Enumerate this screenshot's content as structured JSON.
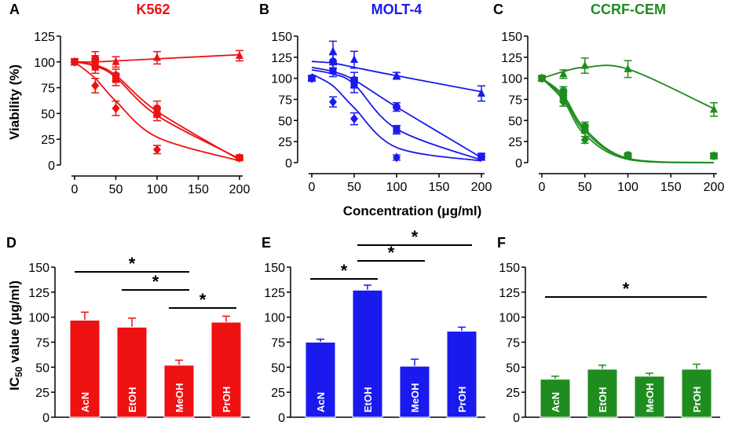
{
  "figure": {
    "shared_xlabel": "Concentration (μg/ml)",
    "ylabel_top": "Viability (%)",
    "ylabel_bottom": "IC50 value (μg/ml)",
    "ylabel_bottom_main": "IC",
    "ylabel_bottom_sub": "50",
    "ylabel_bottom_rest": " value (μg/ml)"
  },
  "chart_data": [
    {
      "panel": "A",
      "type": "line",
      "title": "K562",
      "color": "#ee1111",
      "xlabel": "Concentration (μg/ml)",
      "ylabel": "Viability (%)",
      "xlim": [
        0,
        200
      ],
      "ylim": [
        0,
        125
      ],
      "xticks": [
        0,
        50,
        100,
        150,
        200
      ],
      "yticks": [
        0,
        25,
        50,
        75,
        100,
        125
      ],
      "series": [
        {
          "name": "tri",
          "marker": "triangle",
          "x": [
            0,
            25,
            50,
            100,
            200
          ],
          "y": [
            100,
            101,
            100,
            104,
            106
          ],
          "err": [
            3,
            5,
            5,
            6,
            5
          ],
          "fit": [
            100,
            100,
            101,
            103,
            107
          ]
        },
        {
          "name": "circ",
          "marker": "circle",
          "x": [
            0,
            25,
            50,
            100,
            200
          ],
          "y": [
            100,
            103,
            87,
            55,
            7
          ],
          "err": [
            3,
            7,
            6,
            7,
            2
          ],
          "fit": [
            100,
            97,
            87,
            52,
            5
          ]
        },
        {
          "name": "sq",
          "marker": "square",
          "x": [
            0,
            25,
            50,
            100,
            200
          ],
          "y": [
            100,
            95,
            83,
            49,
            7
          ],
          "err": [
            3,
            6,
            6,
            6,
            2
          ],
          "fit": [
            100,
            96,
            85,
            48,
            6
          ]
        },
        {
          "name": "dia",
          "marker": "diamond",
          "x": [
            0,
            25,
            50,
            100,
            200
          ],
          "y": [
            100,
            77,
            55,
            15,
            7
          ],
          "err": [
            3,
            7,
            7,
            4,
            2
          ],
          "fit": [
            100,
            84,
            62,
            27,
            4
          ]
        }
      ]
    },
    {
      "panel": "B",
      "type": "line",
      "title": "MOLT-4",
      "color": "#1a1aee",
      "xlabel": "Concentration (μg/ml)",
      "ylabel": "",
      "xlim": [
        0,
        200
      ],
      "ylim": [
        0,
        150
      ],
      "xticks": [
        0,
        50,
        100,
        150,
        200
      ],
      "yticks": [
        0,
        25,
        50,
        75,
        100,
        125,
        150
      ],
      "series": [
        {
          "name": "tri",
          "marker": "triangle",
          "x": [
            0,
            25,
            50,
            100,
            200
          ],
          "y": [
            100,
            132,
            122,
            103,
            82
          ],
          "err": [
            3,
            12,
            10,
            4,
            9
          ],
          "fit": [
            120,
            118,
            113,
            103,
            84
          ]
        },
        {
          "name": "circ",
          "marker": "circle",
          "x": [
            0,
            25,
            50,
            100,
            200
          ],
          "y": [
            100,
            120,
            98,
            66,
            7
          ],
          "err": [
            3,
            8,
            9,
            5,
            4
          ],
          "fit": [
            113,
            108,
            98,
            66,
            6
          ]
        },
        {
          "name": "sq",
          "marker": "square",
          "x": [
            0,
            25,
            50,
            100,
            200
          ],
          "y": [
            100,
            109,
            92,
            39,
            7
          ],
          "err": [
            3,
            7,
            9,
            5,
            4
          ],
          "fit": [
            110,
            105,
            93,
            40,
            3
          ]
        },
        {
          "name": "dia",
          "marker": "diamond",
          "x": [
            0,
            25,
            50,
            100,
            200
          ],
          "y": [
            100,
            72,
            52,
            6,
            7
          ],
          "err": [
            3,
            6,
            7,
            3,
            4
          ],
          "fit": [
            105,
            91,
            65,
            18,
            2
          ]
        }
      ]
    },
    {
      "panel": "C",
      "type": "line",
      "title": "CCRF-CEM",
      "color": "#1f8c1f",
      "xlabel": "Concentration (μg/ml)",
      "ylabel": "",
      "xlim": [
        0,
        200
      ],
      "ylim": [
        0,
        150
      ],
      "xticks": [
        0,
        50,
        100,
        150,
        200
      ],
      "yticks": [
        0,
        25,
        50,
        75,
        100,
        125,
        150
      ],
      "series": [
        {
          "name": "tri",
          "marker": "triangle",
          "x": [
            0,
            25,
            50,
            100,
            200
          ],
          "y": [
            100,
            105,
            115,
            111,
            63
          ],
          "err": [
            3,
            5,
            9,
            10,
            8
          ],
          "fit": [
            100,
            108,
            113,
            111,
            64
          ]
        },
        {
          "name": "circ",
          "marker": "circle",
          "x": [
            0,
            25,
            50,
            100,
            200
          ],
          "y": [
            100,
            85,
            43,
            9,
            8
          ],
          "err": [
            3,
            5,
            5,
            2,
            3
          ],
          "fit": [
            100,
            80,
            40,
            5,
            0
          ]
        },
        {
          "name": "sq",
          "marker": "square",
          "x": [
            0,
            25,
            50,
            100,
            200
          ],
          "y": [
            100,
            78,
            40,
            8,
            8
          ],
          "err": [
            3,
            5,
            5,
            2,
            3
          ],
          "fit": [
            100,
            77,
            37,
            5,
            0
          ]
        },
        {
          "name": "dia",
          "marker": "diamond",
          "x": [
            0,
            25,
            50,
            100,
            200
          ],
          "y": [
            100,
            72,
            27,
            8,
            8
          ],
          "err": [
            3,
            5,
            4,
            2,
            3
          ],
          "fit": [
            100,
            74,
            33,
            4,
            0
          ]
        }
      ]
    },
    {
      "panel": "D",
      "type": "bar",
      "color": "#ee1111",
      "ylabel": "IC50 value (μg/ml)",
      "ylim": [
        0,
        150
      ],
      "yticks": [
        0,
        25,
        50,
        75,
        100,
        125,
        150
      ],
      "categories": [
        "AcN",
        "EtOH",
        "MeOH",
        "PrOH"
      ],
      "values": [
        97,
        90,
        52,
        95
      ],
      "errors": [
        8,
        9,
        5,
        6
      ],
      "significance": [
        {
          "from": "AcN",
          "to": "MeOH",
          "level": 0,
          "label": "*"
        },
        {
          "from": "EtOH",
          "to": "MeOH",
          "level": 1,
          "label": "*"
        },
        {
          "from": "MeOH",
          "to": "PrOH",
          "level": 2,
          "label": "*"
        }
      ]
    },
    {
      "panel": "E",
      "type": "bar",
      "color": "#1a1aee",
      "ylabel": "",
      "ylim": [
        0,
        150
      ],
      "yticks": [
        0,
        25,
        50,
        75,
        100,
        125,
        150
      ],
      "categories": [
        "AcN",
        "EtOH",
        "MeOH",
        "PrOH"
      ],
      "values": [
        75,
        127,
        51,
        86
      ],
      "errors": [
        3,
        5,
        7,
        4
      ],
      "significance": [
        {
          "from": "EtOH",
          "to": "PrOH",
          "level": 0,
          "label": "*"
        },
        {
          "from": "EtOH",
          "to": "MeOH",
          "level": 1,
          "label": "*"
        },
        {
          "from": "AcN",
          "to": "EtOH",
          "level": 2,
          "label": "*"
        }
      ]
    },
    {
      "panel": "F",
      "type": "bar",
      "color": "#1f8c1f",
      "ylabel": "",
      "ylim": [
        0,
        150
      ],
      "yticks": [
        0,
        25,
        50,
        75,
        100,
        125,
        150
      ],
      "categories": [
        "AcN",
        "EtOH",
        "MeOH",
        "PrOH"
      ],
      "values": [
        38,
        48,
        41,
        48
      ],
      "errors": [
        3,
        4,
        3,
        5
      ],
      "significance": [
        {
          "from": "AcN",
          "to": "PrOH",
          "level": 0,
          "label": "*"
        }
      ]
    }
  ]
}
